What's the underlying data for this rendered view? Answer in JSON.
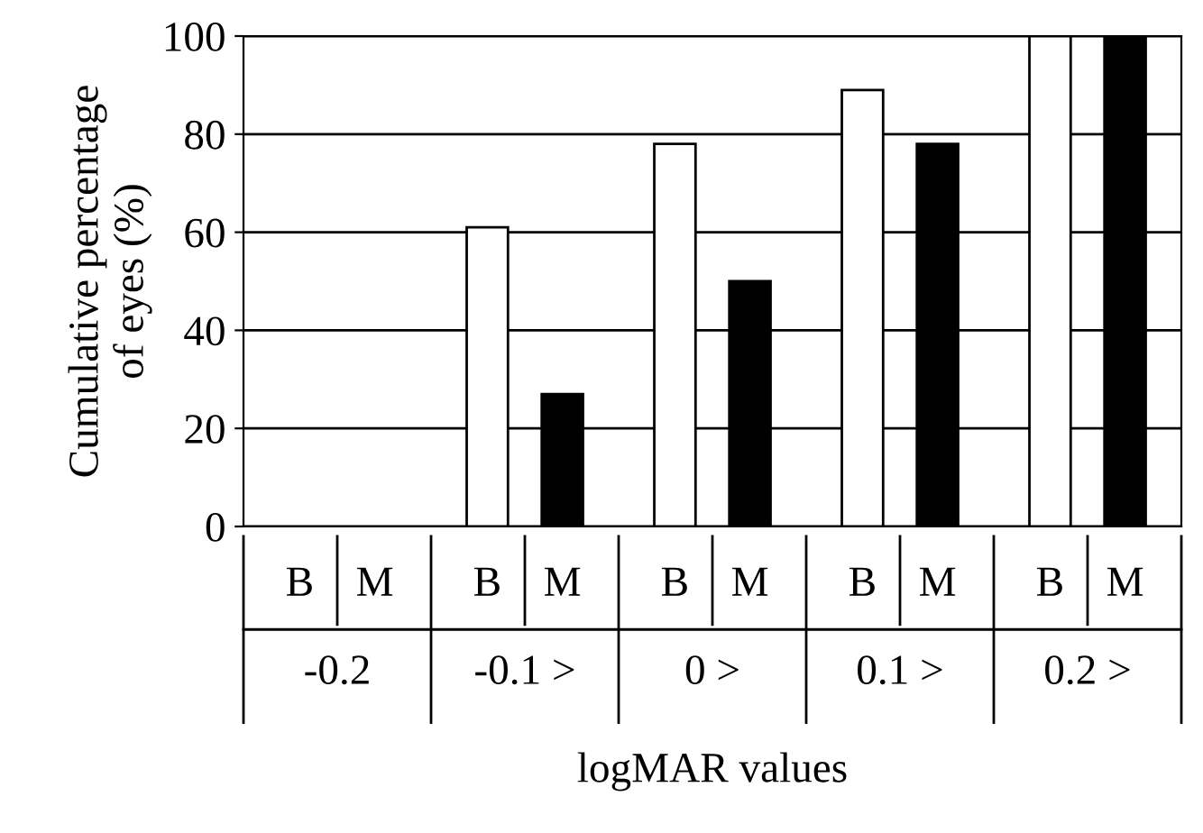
{
  "chart_data": {
    "type": "bar",
    "categories": [
      "-0.2",
      "-0.1 >",
      "0 >",
      "0.1 >",
      "0.2 >"
    ],
    "series": [
      {
        "name": "B",
        "color": "#ffffff",
        "values": [
          0,
          61,
          78,
          89,
          100
        ]
      },
      {
        "name": "M",
        "color": "#000000",
        "values": [
          0,
          27,
          50,
          78,
          100
        ]
      }
    ],
    "ylabel": "Cumulative percentage\nof eyes (%)",
    "xlabel": "logMAR values",
    "ylim": [
      0,
      100
    ],
    "yticks": [
      0,
      20,
      40,
      60,
      80,
      100
    ],
    "grid": "y",
    "legend": "bottom"
  }
}
